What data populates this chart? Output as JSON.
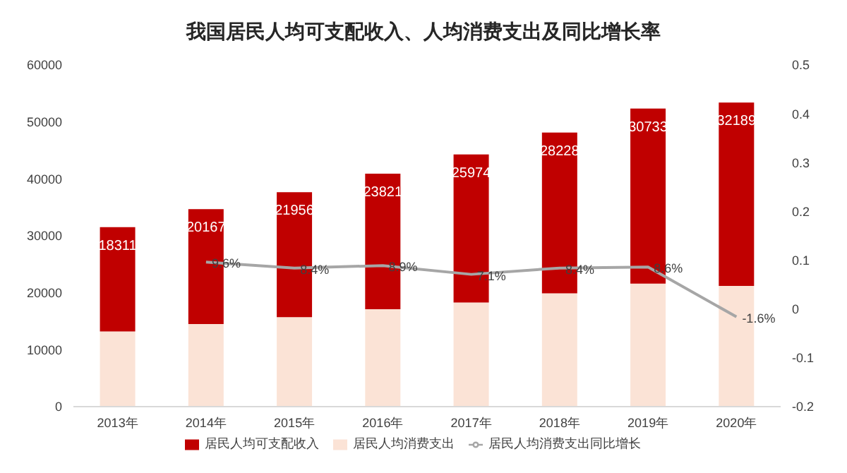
{
  "chart_data": {
    "type": "bar",
    "title": "我国居民人均可支配收入、人均消费支出及同比增长率",
    "categories": [
      "2013年",
      "2014年",
      "2015年",
      "2016年",
      "2017年",
      "2018年",
      "2019年",
      "2020年"
    ],
    "stacked": true,
    "series": [
      {
        "name": "居民人均消费支出",
        "color": "#fbe3d6",
        "values": [
          13200,
          14500,
          15700,
          17100,
          18300,
          19900,
          21600,
          21200
        ]
      },
      {
        "name": "居民人均可支配收入",
        "color": "#c00000",
        "values": [
          18311,
          20167,
          21956,
          23821,
          25974,
          28228,
          30733,
          32189
        ],
        "value_labels": [
          "18311",
          "20167",
          "21956",
          "23821",
          "25974",
          "28228",
          "30733",
          "32189"
        ]
      },
      {
        "name": "居民人均消费支出同比增长",
        "type": "line",
        "axis": "y2",
        "color": "#a6a6a6",
        "marker": "none",
        "values": [
          null,
          0.096,
          0.084,
          0.089,
          0.071,
          0.084,
          0.086,
          -0.016
        ],
        "value_labels": [
          null,
          "9.6%",
          "8.4%",
          "8.9%",
          "7.1%",
          "8.4%",
          "8.6%",
          "-1.6%"
        ]
      }
    ],
    "ylim": [
      0,
      60000
    ],
    "yticks": [
      0,
      10000,
      20000,
      30000,
      40000,
      50000,
      60000
    ],
    "y2lim": [
      -0.2,
      0.5
    ],
    "y2ticks": [
      -0.2,
      -0.1,
      0,
      0.1,
      0.2,
      0.3,
      0.4,
      0.5
    ],
    "grid": false,
    "legend": "bottom"
  }
}
